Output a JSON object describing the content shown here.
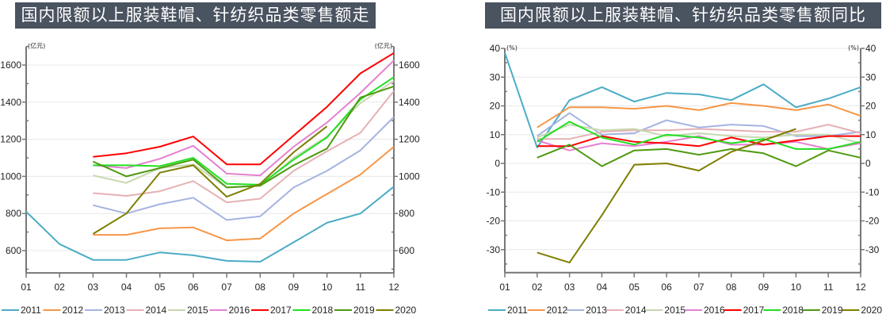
{
  "chart_data": [
    {
      "type": "line",
      "title": "国内限额以上服装鞋帽、针纺织品类零售额走势",
      "xlabel": "",
      "ylabel": "(亿元)",
      "ylabel_right": "(亿元)",
      "categories": [
        "01",
        "02",
        "03",
        "04",
        "05",
        "06",
        "07",
        "08",
        "09",
        "10",
        "11",
        "12"
      ],
      "ylim": [
        480,
        1700
      ],
      "yticks": [
        600,
        800,
        1000,
        1200,
        1400,
        1600
      ],
      "grid": true,
      "legend": "bottom",
      "series": [
        {
          "name": "2011",
          "color": "#4bacc6",
          "values": [
            810,
            635,
            550,
            550,
            590,
            575,
            545,
            540,
            645,
            750,
            800,
            945
          ]
        },
        {
          "name": "2012",
          "color": "#f79646",
          "values": [
            null,
            null,
            685,
            685,
            720,
            725,
            655,
            665,
            800,
            905,
            1010,
            1160
          ]
        },
        {
          "name": "2013",
          "color": "#a6b3e0",
          "values": [
            null,
            null,
            845,
            800,
            850,
            885,
            765,
            785,
            940,
            1030,
            1140,
            1320
          ]
        },
        {
          "name": "2014",
          "color": "#e6b1b4",
          "values": [
            null,
            null,
            910,
            895,
            920,
            975,
            860,
            880,
            1030,
            1135,
            1235,
            1460
          ]
        },
        {
          "name": "2015",
          "color": "#c8d8b0",
          "values": [
            null,
            null,
            1005,
            965,
            1045,
            1065,
            940,
            950,
            1100,
            1215,
            1395,
            1515
          ]
        },
        {
          "name": "2016",
          "color": "#e580d0",
          "values": [
            null,
            null,
            1060,
            1045,
            1095,
            1165,
            1015,
            1005,
            1160,
            1290,
            1450,
            1625
          ]
        },
        {
          "name": "2017",
          "color": "#ff0000",
          "values": [
            null,
            null,
            1105,
            1125,
            1160,
            1215,
            1065,
            1065,
            1220,
            1375,
            1555,
            1665
          ]
        },
        {
          "name": "2018",
          "color": "#22e022",
          "values": [
            null,
            null,
            1060,
            1060,
            1055,
            1100,
            960,
            955,
            1090,
            1210,
            1415,
            1535
          ]
        },
        {
          "name": "2019",
          "color": "#4f9a10",
          "values": [
            null,
            null,
            1080,
            1000,
            1045,
            1090,
            940,
            950,
            1060,
            1150,
            1425,
            1485
          ]
        },
        {
          "name": "2020",
          "color": "#7f7f00",
          "values": [
            null,
            null,
            690,
            800,
            1020,
            1060,
            890,
            960,
            1130,
            1270,
            null,
            null
          ]
        }
      ]
    },
    {
      "type": "line",
      "title": "国内限额以上服装鞋帽、针纺织品类零售额同比",
      "xlabel": "",
      "ylabel": "(%)",
      "ylabel_right": "(%)",
      "categories": [
        "01",
        "02",
        "03",
        "04",
        "05",
        "06",
        "07",
        "08",
        "09",
        "10",
        "11",
        "12"
      ],
      "ylim": [
        -38,
        40
      ],
      "yticks": [
        -30,
        -20,
        -10,
        0,
        10,
        20,
        30,
        40
      ],
      "grid": true,
      "legend": "bottom",
      "series": [
        {
          "name": "2011",
          "color": "#4bacc6",
          "values": [
            38.5,
            5.5,
            22,
            26.5,
            21.5,
            24.5,
            24,
            22,
            27.5,
            19.5,
            22.5,
            26.5
          ]
        },
        {
          "name": "2012",
          "color": "#f79646",
          "values": [
            null,
            12.5,
            19.5,
            19.5,
            19,
            20,
            18.5,
            21,
            20,
            18.5,
            20.5,
            16.5
          ]
        },
        {
          "name": "2013",
          "color": "#a6b3e0",
          "values": [
            null,
            9.5,
            17.5,
            10,
            10.5,
            15,
            12.5,
            13.5,
            13,
            9.5,
            9.5,
            11
          ]
        },
        {
          "name": "2014",
          "color": "#e6b1b4",
          "values": [
            null,
            8.5,
            8.5,
            11,
            11.5,
            11.5,
            12,
            11.5,
            11,
            11,
            13.5,
            10.5
          ]
        },
        {
          "name": "2015",
          "color": "#c8d8b0",
          "values": [
            null,
            9,
            13.5,
            11.5,
            12,
            9.5,
            10.5,
            9.5,
            9,
            10,
            10,
            7
          ]
        },
        {
          "name": "2016",
          "color": "#e580d0",
          "values": [
            null,
            8,
            4.5,
            7,
            6,
            7.5,
            9.5,
            6.5,
            6.5,
            7.5,
            5,
            7
          ]
        },
        {
          "name": "2017",
          "color": "#ff0000",
          "values": [
            null,
            6,
            6,
            9.5,
            7.5,
            7,
            6,
            9,
            6.5,
            8,
            9.5,
            9.5
          ]
        },
        {
          "name": "2018",
          "color": "#22e022",
          "values": [
            null,
            7.5,
            14.5,
            9,
            6.5,
            10,
            9,
            7,
            8.5,
            5,
            5,
            7.5
          ]
        },
        {
          "name": "2019",
          "color": "#4f9a10",
          "values": [
            null,
            2,
            6.5,
            -1,
            4.5,
            5,
            3,
            5,
            3.5,
            -1,
            4.5,
            2
          ]
        },
        {
          "name": "2020",
          "color": "#7f7f00",
          "values": [
            null,
            -31,
            -34.5,
            -18,
            -0.5,
            0,
            -2.5,
            4,
            8,
            12,
            null,
            null
          ]
        }
      ]
    }
  ]
}
